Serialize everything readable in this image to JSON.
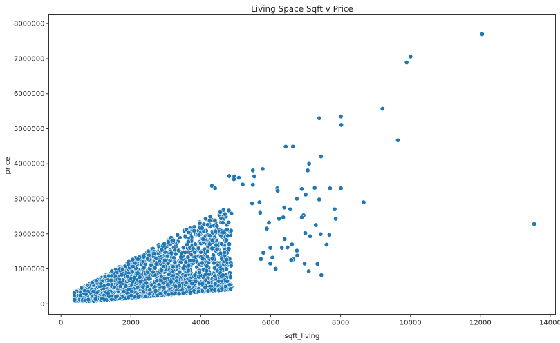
{
  "chart_data": {
    "type": "scatter",
    "title": "Living Space Sqft v Price",
    "xlabel": "sqft_living",
    "ylabel": "price",
    "xlim": [
      -350,
      14150
    ],
    "ylim": [
      -300000,
      8250000
    ],
    "xticks": [
      0,
      2000,
      4000,
      6000,
      8000,
      10000,
      12000,
      14000
    ],
    "xtick_labels": [
      "0",
      "2000",
      "4000",
      "6000",
      "8000",
      "10000",
      "12000",
      "14000"
    ],
    "yticks": [
      0,
      1000000,
      2000000,
      3000000,
      4000000,
      5000000,
      6000000,
      7000000,
      8000000
    ],
    "ytick_labels": [
      "0",
      "1000000",
      "2000000",
      "3000000",
      "4000000",
      "5000000",
      "6000000",
      "7000000",
      "8000000"
    ],
    "grid": false,
    "marker_color": "#1f77b4",
    "marker_edge_color": "#ffffff",
    "series": [
      {
        "points": [
          [
            12050,
            7700000
          ],
          [
            10000,
            7060000
          ],
          [
            9890,
            6890000
          ],
          [
            13540,
            2280000
          ],
          [
            9200,
            5570000
          ],
          [
            8010,
            5350000
          ],
          [
            8020,
            5110000
          ],
          [
            7390,
            5300000
          ],
          [
            9640,
            4670000
          ],
          [
            6430,
            4490000
          ],
          [
            6640,
            4490000
          ],
          [
            7440,
            4210000
          ],
          [
            7100,
            4000000
          ],
          [
            7060,
            3810000
          ],
          [
            5770,
            3850000
          ],
          [
            5490,
            3810000
          ],
          [
            5530,
            3640000
          ],
          [
            4810,
            3650000
          ],
          [
            4960,
            3640000
          ],
          [
            5090,
            3600000
          ],
          [
            5200,
            3410000
          ],
          [
            5490,
            3400000
          ],
          [
            4950,
            3560000
          ],
          [
            7260,
            3310000
          ],
          [
            7700,
            3300000
          ],
          [
            8010,
            3300000
          ],
          [
            6190,
            3300000
          ],
          [
            6200,
            3230000
          ],
          [
            4320,
            3370000
          ],
          [
            4410,
            3300000
          ],
          [
            5680,
            2900000
          ],
          [
            8660,
            2900000
          ],
          [
            7390,
            2980000
          ],
          [
            7000,
            3120000
          ],
          [
            6750,
            3000000
          ],
          [
            6890,
            3280000
          ],
          [
            6390,
            2750000
          ],
          [
            6560,
            2700000
          ],
          [
            7830,
            2700000
          ],
          [
            7860,
            2430000
          ],
          [
            6940,
            2530000
          ],
          [
            6890,
            2470000
          ],
          [
            6360,
            2470000
          ],
          [
            6240,
            2430000
          ],
          [
            5470,
            2870000
          ],
          [
            5700,
            2600000
          ],
          [
            5950,
            2320000
          ],
          [
            5890,
            2150000
          ],
          [
            7430,
            1990000
          ],
          [
            7290,
            2250000
          ],
          [
            6990,
            2020000
          ],
          [
            7130,
            1930000
          ],
          [
            7680,
            1970000
          ],
          [
            7600,
            1690000
          ],
          [
            7340,
            1140000
          ],
          [
            7090,
            930000
          ],
          [
            7450,
            820000
          ],
          [
            6970,
            1150000
          ],
          [
            6760,
            1380000
          ],
          [
            6650,
            1270000
          ],
          [
            6480,
            1610000
          ],
          [
            6050,
            1320000
          ],
          [
            5990,
            1600000
          ],
          [
            6320,
            1600000
          ],
          [
            6610,
            1700000
          ],
          [
            5990,
            1150000
          ],
          [
            6140,
            1000000
          ],
          [
            5790,
            1460000
          ],
          [
            5720,
            1280000
          ],
          [
            6400,
            1850000
          ],
          [
            6750,
            1520000
          ],
          [
            6590,
            1250000
          ]
        ]
      }
    ]
  }
}
